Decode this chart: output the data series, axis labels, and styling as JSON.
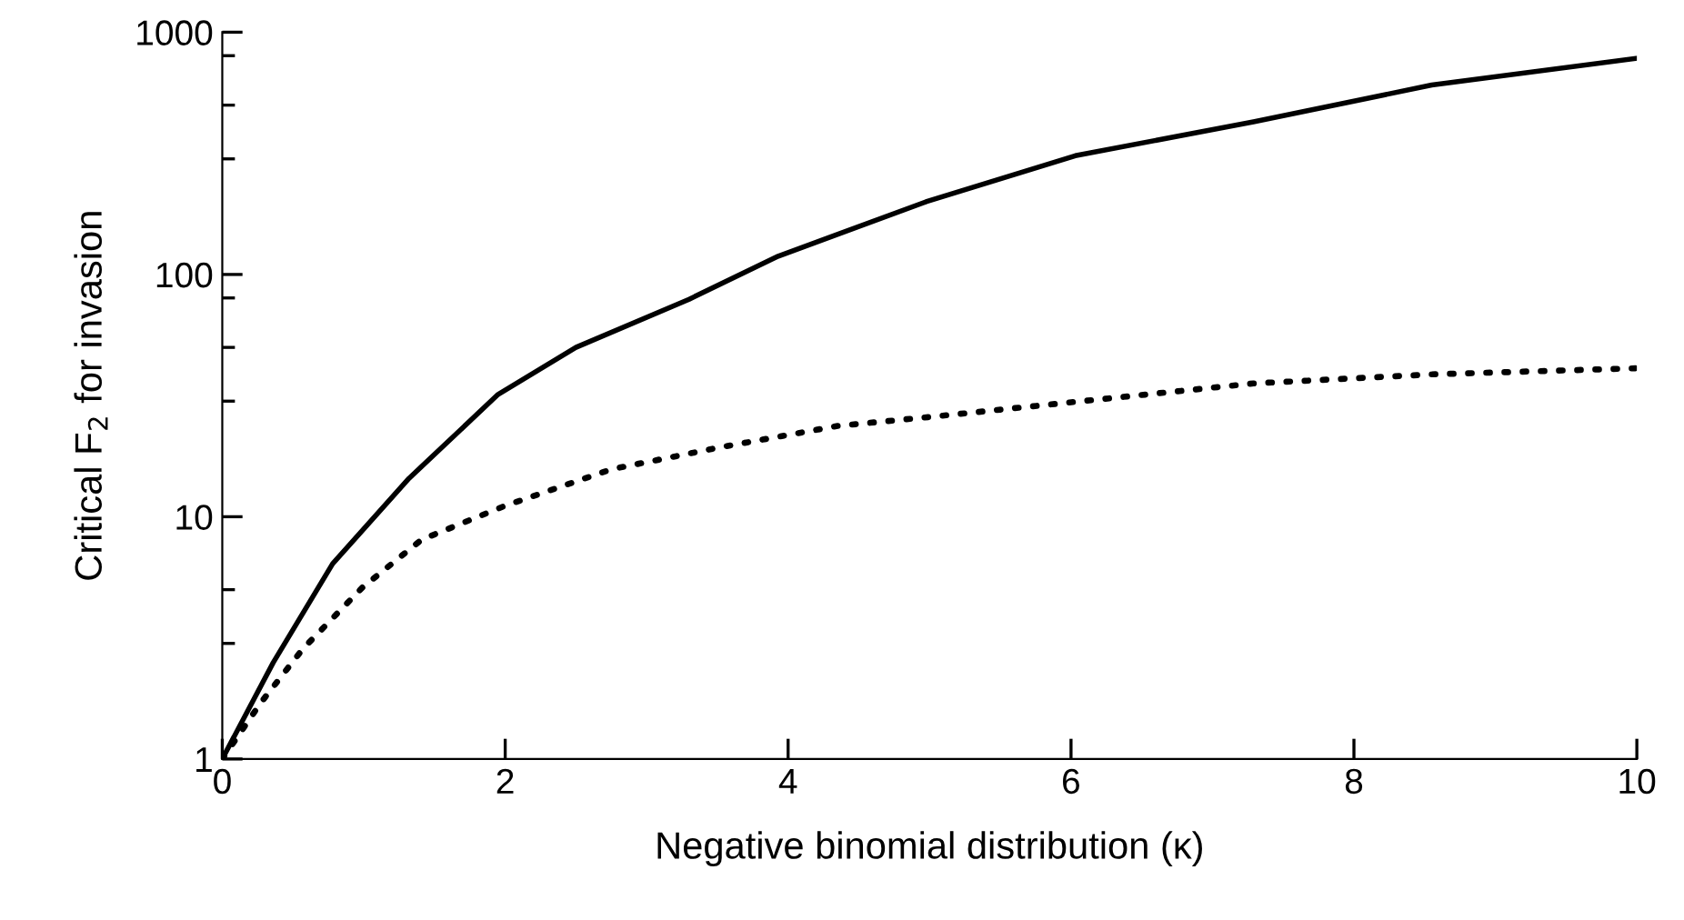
{
  "chart_data": {
    "type": "line",
    "xlabel": "Negative binomial distribution (κ)",
    "ylabel": "Critical F$_{2}$ for invasion",
    "log": "y",
    "xlim": [
      0,
      10
    ],
    "ylim": [
      1,
      1000
    ],
    "xticks": [
      0,
      2,
      4,
      6,
      8,
      10
    ],
    "yticks": [
      1,
      {
        "value": 3,
        "label": null
      },
      {
        "value": 5,
        "label": null
      },
      10,
      {
        "value": 30,
        "label": null
      },
      {
        "value": 50,
        "label": null
      },
      {
        "value": 80,
        "label": null
      },
      100,
      {
        "value": 300,
        "label": null
      },
      {
        "value": 500,
        "label": null
      },
      {
        "value": 800,
        "label": null
      },
      1000
    ],
    "grid": false,
    "legend": false,
    "series": [
      {
        "color": "#000000",
        "line_style": "solid",
        "x": [
          0,
          0.36,
          0.78,
          1.32,
          1.95,
          2.5,
          3.3,
          3.93,
          4.98,
          6.03,
          7.29,
          8.55,
          10
        ],
        "values": [
          1,
          2.5,
          6.4,
          14.4,
          32,
          50,
          79,
          119,
          200,
          309,
          427,
          605,
          780
        ]
      },
      {
        "color": "#000000",
        "line_style": "dotted",
        "x": [
          0,
          0.27,
          0.57,
          0.99,
          1.41,
          2.0,
          2.75,
          3.51,
          4.35,
          5.0,
          6.03,
          7.29,
          8.55,
          10
        ],
        "values": [
          1,
          1.7,
          2.85,
          5.1,
          8.05,
          11.1,
          15.7,
          19.3,
          23.7,
          25.8,
          29.8,
          35.5,
          38.7,
          41
        ]
      }
    ]
  }
}
